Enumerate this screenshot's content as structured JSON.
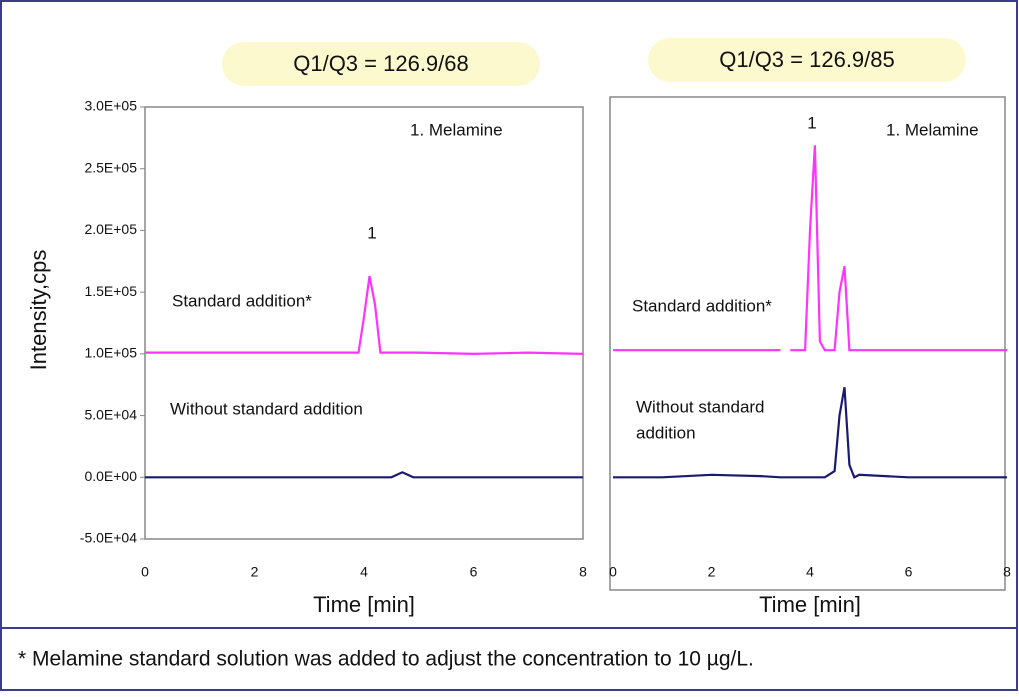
{
  "chart_data": [
    {
      "type": "line",
      "title": "Q1/Q3 = 126.9/68",
      "x_label": "Time [min]",
      "y_label": "Intensity,cps",
      "annotations": [
        "1. Melamine",
        "1",
        "Standard addition*",
        "Without standard  addition"
      ],
      "x": [
        0,
        1,
        2,
        3,
        3.9,
        4.0,
        4.1,
        4.2,
        4.3,
        4.5,
        4.6,
        4.7,
        4.8,
        4.9,
        5,
        6,
        7,
        8
      ],
      "series": [
        {
          "name": "Standard addition*",
          "color": "#ff33ff",
          "values": [
            101000,
            101000,
            101000,
            101000,
            101000,
            130000,
            163000,
            140000,
            101000,
            101000,
            101000,
            101000,
            101000,
            101000,
            101000,
            100000,
            101000,
            100000
          ]
        },
        {
          "name": "Without standard  addition",
          "color": "#1a1a6e",
          "values": [
            0,
            0,
            0,
            0,
            0,
            0,
            0,
            0,
            0,
            0,
            2000,
            4000,
            2000,
            0,
            0,
            0,
            0,
            0
          ]
        }
      ],
      "xlim": [
        0,
        8
      ],
      "xticks": [
        0,
        2,
        4,
        6,
        8
      ],
      "ylim": [
        -50000,
        300000
      ],
      "yticks": [
        {
          "value": -50000,
          "label": "-5.0E+04"
        },
        {
          "value": 0,
          "label": "0.0E+00"
        },
        {
          "value": 50000,
          "label": "5.0E+04"
        },
        {
          "value": 100000,
          "label": "1.0E+05"
        },
        {
          "value": 150000,
          "label": "1.5E+05"
        },
        {
          "value": 200000,
          "label": "2.0E+05"
        },
        {
          "value": 250000,
          "label": "2.5E+05"
        },
        {
          "value": 300000,
          "label": "3.0E+05"
        }
      ]
    },
    {
      "type": "line",
      "title": "Q1/Q3 = 126.9/85",
      "x_label": "Time [min]",
      "annotations": [
        "1",
        "1. Melamine",
        "Standard addition*",
        "Without standard",
        "addition"
      ],
      "x": [
        0,
        1,
        2,
        3,
        3.4,
        3.5,
        3.6,
        3.9,
        4.0,
        4.1,
        4.2,
        4.3,
        4.5,
        4.6,
        4.7,
        4.8,
        4.9,
        5,
        6,
        7,
        8
      ],
      "series": [
        {
          "name": "Standard addition*",
          "color": "#ff33ff",
          "values": [
            103000,
            103000,
            103000,
            103000,
            103000,
            null,
            103000,
            103000,
            200000,
            269000,
            110000,
            103000,
            103000,
            150000,
            171000,
            103000,
            103000,
            103000,
            103000,
            103000,
            103000
          ]
        },
        {
          "name": "Without standard addition",
          "color": "#1a1a6e",
          "values": [
            0,
            0,
            2000,
            1000,
            0,
            0,
            0,
            0,
            0,
            0,
            0,
            0,
            5000,
            50000,
            73000,
            10000,
            0,
            2000,
            0,
            0,
            0
          ]
        }
      ],
      "xlim": [
        0,
        8
      ],
      "xticks": [
        0,
        2,
        4,
        6,
        8
      ],
      "ylim": [
        -50000,
        300000
      ]
    }
  ],
  "footnote": "* Melamine standard solution was added to adjust the concentration to 10 µg/L."
}
